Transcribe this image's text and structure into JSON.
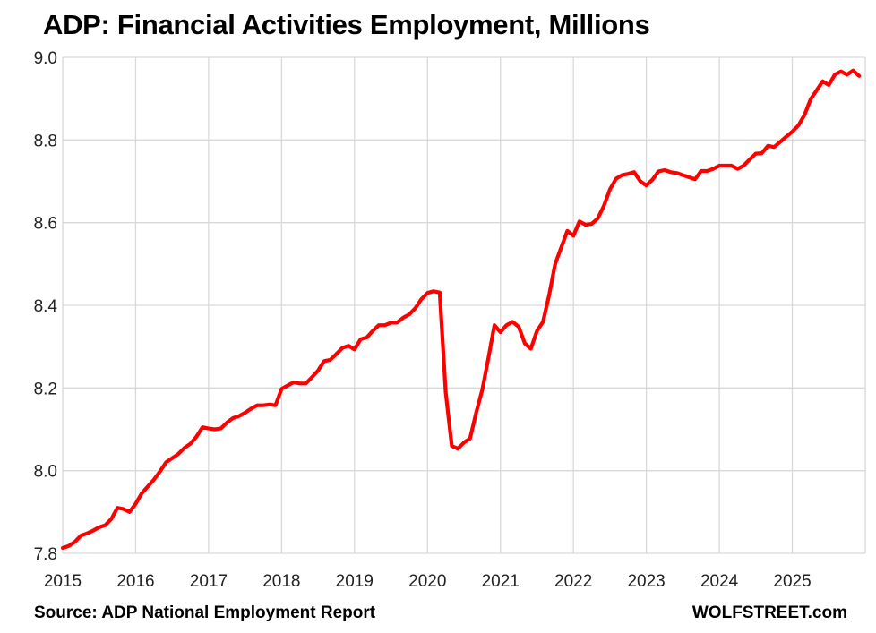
{
  "chart_data": {
    "type": "line",
    "title": "ADP: Financial Activities Employment, Millions",
    "xlabel": "",
    "ylabel": "",
    "ylim": [
      7.8,
      9.0
    ],
    "yticks": [
      "7.8",
      "8.0",
      "8.2",
      "8.4",
      "8.6",
      "8.8",
      "9.0"
    ],
    "xticks": [
      "2015",
      "2016",
      "2017",
      "2018",
      "2019",
      "2020",
      "2021",
      "2022",
      "2023",
      "2024",
      "2025"
    ],
    "xlim": [
      2015.0,
      2026.0
    ],
    "grid": true,
    "legend": "none",
    "series": [
      {
        "color": "#ff0000",
        "x": [
          2015.0,
          2015.083,
          2015.167,
          2015.25,
          2015.333,
          2015.417,
          2015.5,
          2015.583,
          2015.667,
          2015.75,
          2015.833,
          2015.917,
          2016.0,
          2016.083,
          2016.167,
          2016.25,
          2016.333,
          2016.417,
          2016.5,
          2016.583,
          2016.667,
          2016.75,
          2016.833,
          2016.917,
          2017.0,
          2017.083,
          2017.167,
          2017.25,
          2017.333,
          2017.417,
          2017.5,
          2017.583,
          2017.667,
          2017.75,
          2017.833,
          2017.917,
          2018.0,
          2018.083,
          2018.167,
          2018.25,
          2018.333,
          2018.417,
          2018.5,
          2018.583,
          2018.667,
          2018.75,
          2018.833,
          2018.917,
          2019.0,
          2019.083,
          2019.167,
          2019.25,
          2019.333,
          2019.417,
          2019.5,
          2019.583,
          2019.667,
          2019.75,
          2019.833,
          2019.917,
          2020.0,
          2020.083,
          2020.167,
          2020.25,
          2020.333,
          2020.417,
          2020.5,
          2020.583,
          2020.667,
          2020.75,
          2020.833,
          2020.917,
          2021.0,
          2021.083,
          2021.167,
          2021.25,
          2021.333,
          2021.417,
          2021.5,
          2021.583,
          2021.667,
          2021.75,
          2021.833,
          2021.917,
          2022.0,
          2022.083,
          2022.167,
          2022.25,
          2022.333,
          2022.417,
          2022.5,
          2022.583,
          2022.667,
          2022.75,
          2022.833,
          2022.917,
          2023.0,
          2023.083,
          2023.167,
          2023.25,
          2023.333,
          2023.417,
          2023.5,
          2023.583,
          2023.667,
          2023.75,
          2023.833,
          2023.917,
          2024.0,
          2024.083,
          2024.167,
          2024.25,
          2024.333,
          2024.417,
          2024.5,
          2024.583,
          2024.667,
          2024.75,
          2024.833,
          2024.917,
          2025.0,
          2025.083,
          2025.167,
          2025.25,
          2025.333,
          2025.417,
          2025.5,
          2025.583,
          2025.667,
          2025.75,
          2025.833,
          2025.917
        ],
        "values": [
          7.813,
          7.818,
          7.828,
          7.843,
          7.848,
          7.855,
          7.863,
          7.868,
          7.883,
          7.91,
          7.907,
          7.9,
          7.92,
          7.945,
          7.962,
          7.978,
          7.998,
          8.02,
          8.03,
          8.04,
          8.055,
          8.065,
          8.082,
          8.105,
          8.102,
          8.1,
          8.102,
          8.116,
          8.127,
          8.132,
          8.14,
          8.15,
          8.158,
          8.158,
          8.16,
          8.158,
          8.198,
          8.206,
          8.214,
          8.211,
          8.211,
          8.226,
          8.242,
          8.265,
          8.268,
          8.282,
          8.297,
          8.302,
          8.293,
          8.318,
          8.322,
          8.338,
          8.352,
          8.352,
          8.358,
          8.358,
          8.37,
          8.378,
          8.393,
          8.415,
          8.43,
          8.434,
          8.431,
          8.19,
          8.06,
          8.053,
          8.068,
          8.078,
          8.14,
          8.195,
          8.27,
          8.352,
          8.335,
          8.352,
          8.36,
          8.348,
          8.308,
          8.295,
          8.338,
          8.36,
          8.425,
          8.5,
          8.54,
          8.58,
          8.568,
          8.603,
          8.595,
          8.597,
          8.61,
          8.64,
          8.68,
          8.706,
          8.715,
          8.718,
          8.722,
          8.7,
          8.69,
          8.704,
          8.724,
          8.727,
          8.722,
          8.72,
          8.715,
          8.71,
          8.705,
          8.725,
          8.725,
          8.73,
          8.738,
          8.738,
          8.738,
          8.73,
          8.738,
          8.753,
          8.767,
          8.768,
          8.786,
          8.783,
          8.795,
          8.808,
          8.82,
          8.835,
          8.86,
          8.898,
          8.92,
          8.942,
          8.933,
          8.958,
          8.966,
          8.958,
          8.968,
          8.955
        ]
      }
    ]
  },
  "footer": {
    "source": "Source: ADP National Employment Report",
    "brand": "WOLFSTREET.com"
  }
}
